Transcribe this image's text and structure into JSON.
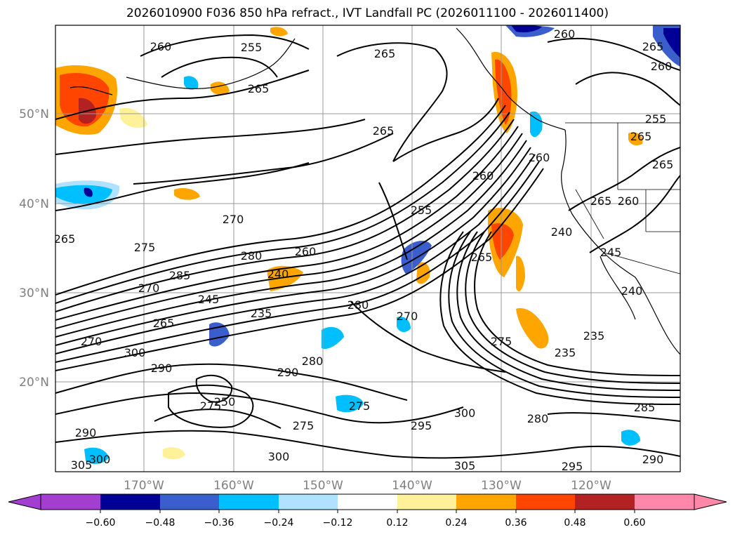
{
  "title": "2026010900 F036 850 hPa refract., IVT Landfall PC (2026011100 - 2026011400)",
  "map": {
    "lat_labels": [
      "50°N",
      "40°N",
      "30°N",
      "20°N"
    ],
    "lon_labels": [
      "170°W",
      "160°W",
      "150°W",
      "140°W",
      "130°W",
      "120°W"
    ],
    "land_color": "#ffffff",
    "coast_color": "#000000"
  },
  "contour_labels": [
    "260",
    "255",
    "265",
    "265",
    "265",
    "260",
    "265",
    "260",
    "255",
    "265",
    "265",
    "260",
    "260",
    "255",
    "245",
    "240",
    "270",
    "275",
    "285",
    "280",
    "260",
    "240",
    "235",
    "265",
    "270",
    "245",
    "270",
    "300",
    "290",
    "290",
    "280",
    "275",
    "250",
    "280",
    "275",
    "275",
    "300",
    "295",
    "300",
    "305",
    "305",
    "290",
    "300",
    "280",
    "285",
    "295",
    "235",
    "235",
    "275",
    "265",
    "240",
    "265",
    "260",
    "290",
    "270",
    "265"
  ],
  "colorbar": {
    "tick_labels": [
      "−0.60",
      "−0.48",
      "−0.36",
      "−0.24",
      "−0.12",
      "0.12",
      "0.24",
      "0.36",
      "0.48",
      "0.60"
    ],
    "colors": [
      "#a23fd0",
      "#000096",
      "#3a5fcd",
      "#00bfff",
      "#b0e2ff",
      "#ffffff",
      "#fff09a",
      "#ffa500",
      "#ff4500",
      "#b22222",
      "#ff88a8"
    ],
    "under_color": "#8a2be2",
    "over_color": "#ff88a8"
  }
}
